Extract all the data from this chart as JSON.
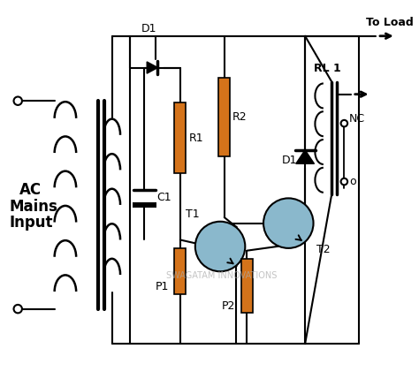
{
  "bg_color": "#ffffff",
  "line_color": "#000000",
  "resistor_color": "#d4731a",
  "transistor_color": "#8ab8cc",
  "text_color": "#000000",
  "watermark": "SWAGATAM INNOVATIONS",
  "labels": {
    "D1_top": "D1",
    "R1": "R1",
    "R2": "R2",
    "C1": "C1",
    "T1": "T1",
    "P1": "P1",
    "P2": "P2",
    "T2": "T2",
    "D1_right": "D1",
    "RL1": "RL 1",
    "NC": "NC",
    "O": "o",
    "ToLoad": "To Load",
    "AC": "AC",
    "Mains": "Mains",
    "Input": "Input"
  },
  "fig_width": 4.74,
  "fig_height": 4.29,
  "dpi": 100
}
